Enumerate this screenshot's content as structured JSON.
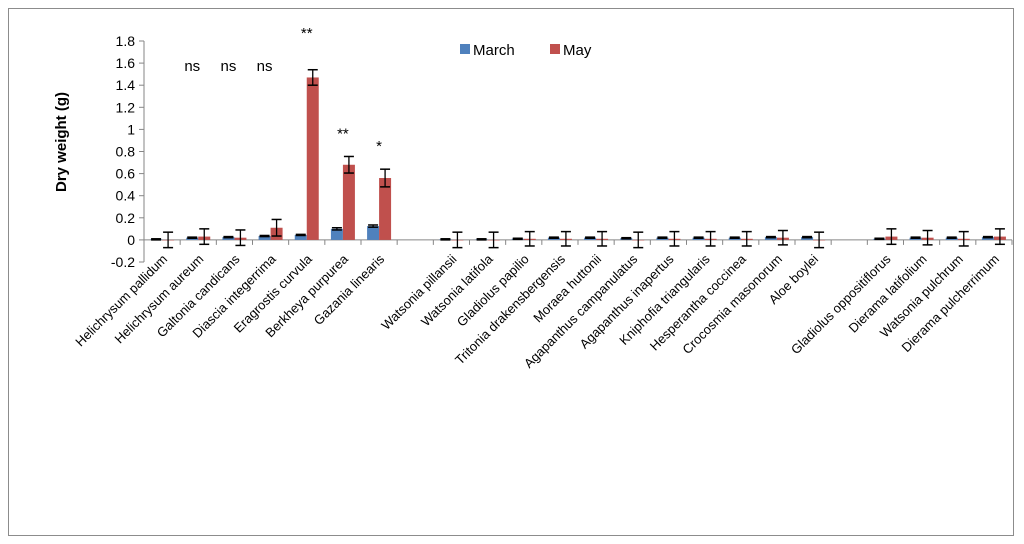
{
  "chart_data": {
    "type": "bar",
    "ylabel": "Dry weight (g)",
    "ylim": [
      -0.2,
      1.8
    ],
    "yticks": [
      "1.8",
      "1.6",
      "1.4",
      "1.2",
      "1",
      "0.8",
      "0.6",
      "0.4",
      "0.2",
      "0",
      "-0.2"
    ],
    "legend": {
      "position": "top-center",
      "entries": [
        "March",
        "May"
      ]
    },
    "colors": {
      "March": "#4f81bd",
      "May": "#c0504d"
    },
    "categories": [
      "Helichrysum pallidum",
      "Helichrysum aureum",
      "Galtonia candicans",
      "Diascia integerrima",
      "Eragrostis curvula",
      "Berkheya purpurea",
      "Gazania linearis",
      "",
      "Watsonia pillansii",
      "Watsonia latifola",
      "Gladiolus papilio",
      "Tritonia drakensbergensis",
      "Moraea huttonii",
      "Agapanthus campanulatus",
      "Agapanthus inapertus",
      "Kniphofia triangularis",
      "Hesperantha coccinea",
      "Crocosmia masonorum",
      "Aloe boylei",
      "",
      "Gladiolus oppositiflorus",
      "Dierama latifolium",
      "Watsonia pulchrum",
      "Dierama pulcherrimum"
    ],
    "series": [
      {
        "name": "March",
        "values": [
          0.005,
          0.02,
          0.025,
          0.035,
          0.045,
          0.1,
          0.125,
          null,
          0.005,
          0.005,
          0.01,
          0.02,
          0.02,
          0.015,
          0.02,
          0.02,
          0.02,
          0.025,
          0.025,
          null,
          0.01,
          0.02,
          0.02,
          0.025
        ],
        "errors": [
          0.005,
          0.005,
          0.005,
          0.005,
          0.005,
          0.01,
          0.01,
          null,
          0.005,
          0.005,
          0.005,
          0.005,
          0.005,
          0.005,
          0.005,
          0.005,
          0.005,
          0.005,
          0.005,
          null,
          0.005,
          0.005,
          0.005,
          0.005
        ]
      },
      {
        "name": "May",
        "values": [
          0.0,
          0.03,
          0.02,
          0.11,
          1.47,
          0.68,
          0.56,
          null,
          0.0,
          0.0,
          0.01,
          0.01,
          0.01,
          0.0,
          0.01,
          0.01,
          0.01,
          0.02,
          0.0,
          null,
          0.03,
          0.02,
          0.01,
          0.03
        ],
        "errors": [
          0.07,
          0.07,
          0.07,
          0.075,
          0.07,
          0.075,
          0.08,
          null,
          0.07,
          0.07,
          0.065,
          0.065,
          0.065,
          0.07,
          0.065,
          0.065,
          0.065,
          0.065,
          0.07,
          null,
          0.07,
          0.065,
          0.065,
          0.07
        ]
      }
    ],
    "annotations": [
      "ns",
      "ns",
      "ns",
      "**",
      "**",
      "*"
    ],
    "grid": false
  }
}
